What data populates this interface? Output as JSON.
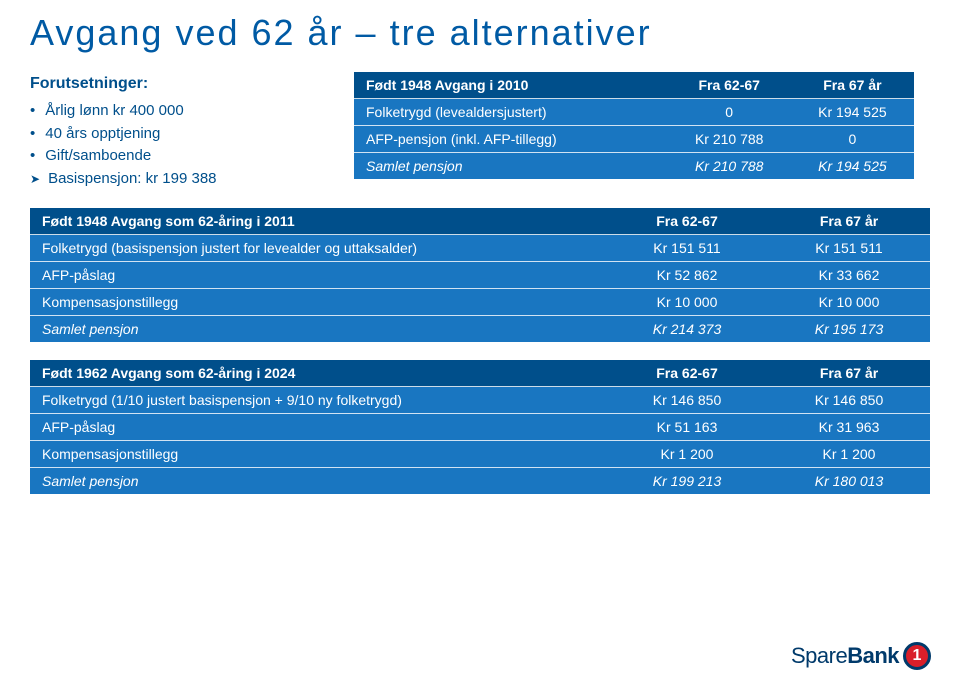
{
  "title": "Avgang ved 62 år – tre alternativer",
  "assumptions": {
    "heading": "Forutsetninger:",
    "items": [
      {
        "style": "dot",
        "text": "Årlig lønn kr 400 000"
      },
      {
        "style": "dot",
        "text": "40 års opptjening"
      },
      {
        "style": "dot",
        "text": "Gift/samboende"
      },
      {
        "style": "arrow",
        "text": "Basispensjon: kr 199 388"
      }
    ]
  },
  "table1": {
    "header": [
      "Født 1948 Avgang i 2010",
      "Fra 62-67",
      "Fra 67 år"
    ],
    "rows": [
      [
        "Folketrygd (levealdersjustert)",
        "0",
        "Kr 194 525"
      ],
      [
        "AFP-pensjon (inkl. AFP-tillegg)",
        "Kr 210 788",
        "0"
      ]
    ],
    "total": [
      "Samlet pensjon",
      "Kr 210 788",
      "Kr 194 525"
    ]
  },
  "table2": {
    "header": [
      "Født 1948 Avgang som 62-åring i 2011",
      "Fra 62-67",
      "Fra 67 år"
    ],
    "rows": [
      [
        "Folketrygd (basispensjon justert for levealder og uttaksalder)",
        "Kr 151 511",
        "Kr 151 511"
      ],
      [
        "AFP-påslag",
        "Kr   52 862",
        "Kr   33 662"
      ],
      [
        "Kompensasjonstillegg",
        "Kr   10 000",
        "Kr   10 000"
      ]
    ],
    "total": [
      "Samlet pensjon",
      "Kr 214 373",
      "Kr 195 173"
    ]
  },
  "table3": {
    "header": [
      "Født 1962 Avgang som 62-åring i 2024",
      "Fra 62-67",
      "Fra 67 år"
    ],
    "rows": [
      [
        "Folketrygd (1/10 justert basispensjon + 9/10 ny folketrygd)",
        "Kr 146 850",
        "Kr 146 850"
      ],
      [
        "AFP-påslag",
        "Kr   51 163",
        "Kr   31 963"
      ],
      [
        "Kompensasjonstillegg",
        "Kr     1 200",
        "Kr     1 200"
      ]
    ],
    "total": [
      "Samlet pensjon",
      "Kr 199 213",
      "Kr 180 013"
    ]
  },
  "logo": {
    "brand1": "Spare",
    "brand2": "Bank",
    "mark": "1"
  },
  "colors": {
    "title": "#005aa4",
    "header_bg": "#004f8b",
    "row_bg": "#1976c1",
    "text": "#ffffff"
  }
}
